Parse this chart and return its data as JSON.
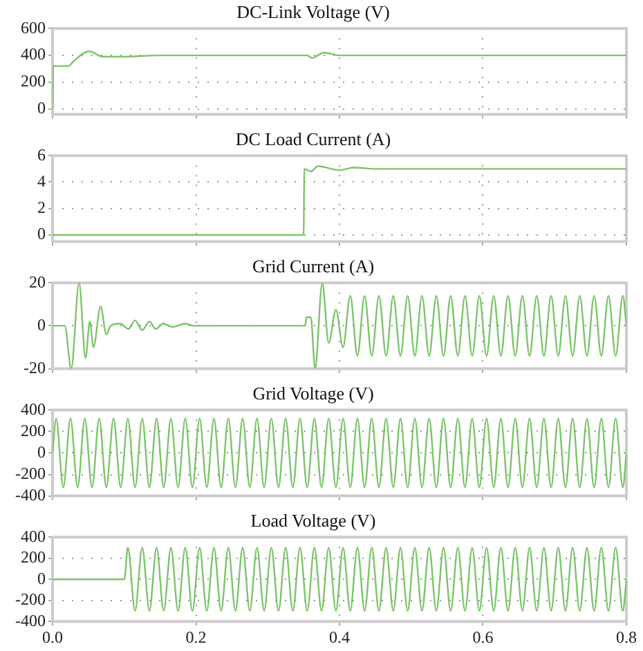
{
  "chart_data": [
    {
      "type": "line",
      "title": "DC-Link Voltage (V)",
      "xlim": [
        0,
        0.8
      ],
      "xticks": [
        0,
        0.2,
        0.4,
        0.6,
        0.8
      ],
      "ylim": [
        -40,
        600
      ],
      "yticks": [
        0,
        200,
        400,
        600
      ],
      "grid": true,
      "tick_labels": "y",
      "series": [
        {
          "color": "#7dc36b",
          "x": [
            0,
            0.001,
            0.022,
            0.03,
            0.051,
            0.07,
            0.1,
            0.15,
            0.2,
            0.3,
            0.355,
            0.362,
            0.378,
            0.4,
            0.45,
            0.5,
            0.6,
            0.7,
            0.8
          ],
          "values": [
            0,
            320,
            320,
            360,
            430,
            390,
            390,
            400,
            400,
            400,
            400,
            380,
            420,
            400,
            400,
            400,
            400,
            400,
            400
          ]
        }
      ]
    },
    {
      "type": "line",
      "title": "DC Load Current (A)",
      "xlim": [
        0,
        0.8
      ],
      "xticks": [
        0,
        0.2,
        0.4,
        0.6,
        0.8
      ],
      "ylim": [
        -0.5,
        6
      ],
      "yticks": [
        0,
        2,
        4,
        6
      ],
      "grid": true,
      "tick_labels": "y",
      "series": [
        {
          "color": "#7dc36b",
          "x": [
            0,
            0.35,
            0.351,
            0.36,
            0.37,
            0.4,
            0.42,
            0.45,
            0.5,
            0.6,
            0.7,
            0.8
          ],
          "values": [
            0,
            0,
            5,
            4.8,
            5.2,
            4.9,
            5.1,
            5,
            5,
            5,
            5,
            5
          ]
        }
      ]
    },
    {
      "type": "line",
      "title": "Grid Current (A)",
      "xlim": [
        0,
        0.8
      ],
      "xticks": [
        0,
        0.2,
        0.4,
        0.6,
        0.8
      ],
      "ylim": [
        -20,
        20
      ],
      "yticks": [
        -20,
        0,
        20
      ],
      "grid": true,
      "tick_labels": "y",
      "series": [
        {
          "color": "#7dc36b",
          "x": [
            0,
            0.017,
            0.026,
            0.037,
            0.046,
            0.052,
            0.057,
            0.067,
            0.075,
            0.081,
            0.094,
            0.106,
            0.115,
            0.125,
            0.135,
            0.144,
            0.154,
            0.167,
            0.186,
            0.196,
            0.25,
            0.3,
            0.352,
            0.354,
            0.36,
            0.366,
            0.376,
            0.385,
            0.395,
            0.405,
            0.415,
            0.425,
            0.435,
            0.445,
            0.455,
            0.465,
            0.475,
            0.485,
            0.495,
            0.505,
            0.515,
            0.525,
            0.535,
            0.545,
            0.555,
            0.565,
            0.575,
            0.585,
            0.595,
            0.605,
            0.615,
            0.625,
            0.635,
            0.645,
            0.655,
            0.665,
            0.675,
            0.685,
            0.695,
            0.705,
            0.715,
            0.725,
            0.735,
            0.745,
            0.755,
            0.765,
            0.775,
            0.785,
            0.795,
            0.8
          ],
          "values": [
            0,
            0,
            -20,
            20,
            -15,
            2,
            -10,
            9,
            -4,
            0,
            1,
            -1.5,
            2.5,
            -2,
            2,
            -1.5,
            1,
            -0.5,
            1,
            0,
            0,
            0,
            0,
            4,
            4,
            -20,
            20,
            -8,
            7.5,
            -10,
            14,
            -14,
            14,
            -14,
            14,
            -14,
            14,
            -14,
            14,
            -14,
            14,
            -14,
            14,
            -14,
            14,
            -14,
            14,
            -14,
            14,
            -14,
            14,
            -14,
            14,
            -14,
            14,
            -14,
            14,
            -14,
            14,
            -14,
            14,
            -14,
            14,
            -14,
            14,
            -14,
            14,
            -14,
            14,
            0
          ]
        }
      ]
    },
    {
      "type": "line",
      "title": "Grid Voltage (V)",
      "xlim": [
        0,
        0.8
      ],
      "xticks": [
        0,
        0.2,
        0.4,
        0.6,
        0.8
      ],
      "ylim": [
        -400,
        400
      ],
      "yticks": [
        -400,
        -200,
        0,
        200,
        400
      ],
      "grid": true,
      "tick_labels": "y",
      "series": [
        {
          "color": "#7dc36b",
          "x": [
            0,
            0.005,
            0.015,
            0.025,
            0.035,
            0.045,
            0.055,
            0.065,
            0.075,
            0.085,
            0.095,
            0.105,
            0.115,
            0.125,
            0.135,
            0.145,
            0.155,
            0.165,
            0.175,
            0.185,
            0.195,
            0.205,
            0.215,
            0.225,
            0.235,
            0.245,
            0.255,
            0.265,
            0.275,
            0.285,
            0.295,
            0.305,
            0.315,
            0.325,
            0.335,
            0.345,
            0.355,
            0.365,
            0.375,
            0.385,
            0.395,
            0.405,
            0.415,
            0.425,
            0.435,
            0.445,
            0.455,
            0.465,
            0.475,
            0.485,
            0.495,
            0.505,
            0.515,
            0.525,
            0.535,
            0.545,
            0.555,
            0.565,
            0.575,
            0.585,
            0.595,
            0.605,
            0.615,
            0.625,
            0.635,
            0.645,
            0.655,
            0.665,
            0.675,
            0.685,
            0.695,
            0.705,
            0.715,
            0.725,
            0.735,
            0.745,
            0.755,
            0.765,
            0.775,
            0.785,
            0.795,
            0.8
          ],
          "values": [
            0,
            320,
            -320,
            320,
            -320,
            320,
            -320,
            320,
            -320,
            320,
            -320,
            320,
            -320,
            320,
            -320,
            320,
            -320,
            320,
            -320,
            320,
            -320,
            320,
            -320,
            320,
            -320,
            320,
            -320,
            320,
            -320,
            320,
            -320,
            320,
            -320,
            320,
            -320,
            320,
            -320,
            320,
            -320,
            320,
            -320,
            320,
            -320,
            320,
            -320,
            320,
            -320,
            320,
            -320,
            320,
            -320,
            320,
            -320,
            320,
            -320,
            320,
            -320,
            320,
            -320,
            320,
            -320,
            320,
            -320,
            320,
            -320,
            320,
            -320,
            320,
            -320,
            320,
            -320,
            320,
            -320,
            320,
            -320,
            320,
            -320,
            320,
            -320,
            320,
            -320,
            0
          ]
        }
      ]
    },
    {
      "type": "line",
      "title": "Load Voltage (V)",
      "xlim": [
        0,
        0.8
      ],
      "xticks": [
        {
          "value": 0,
          "label": "0.0"
        },
        0.2,
        0.4,
        0.6,
        {
          "value": 0.8,
          "label": "0.8"
        }
      ],
      "ylim": [
        -400,
        400
      ],
      "yticks": [
        -400,
        -200,
        0,
        200,
        400
      ],
      "grid": true,
      "series": [
        {
          "color": "#7dc36b",
          "x": [
            0,
            0.1,
            0.105,
            0.115,
            0.125,
            0.135,
            0.145,
            0.155,
            0.165,
            0.175,
            0.185,
            0.195,
            0.205,
            0.215,
            0.225,
            0.235,
            0.245,
            0.255,
            0.265,
            0.275,
            0.285,
            0.295,
            0.305,
            0.315,
            0.325,
            0.335,
            0.345,
            0.355,
            0.365,
            0.375,
            0.385,
            0.395,
            0.405,
            0.415,
            0.425,
            0.435,
            0.445,
            0.455,
            0.465,
            0.475,
            0.485,
            0.495,
            0.505,
            0.515,
            0.525,
            0.535,
            0.545,
            0.555,
            0.565,
            0.575,
            0.585,
            0.595,
            0.605,
            0.615,
            0.625,
            0.635,
            0.645,
            0.655,
            0.665,
            0.675,
            0.685,
            0.695,
            0.705,
            0.715,
            0.725,
            0.735,
            0.745,
            0.755,
            0.765,
            0.775,
            0.785,
            0.795,
            0.8
          ],
          "values": [
            0,
            0,
            300,
            -300,
            300,
            -300,
            300,
            -300,
            300,
            -300,
            300,
            -300,
            300,
            -300,
            300,
            -300,
            300,
            -300,
            300,
            -300,
            300,
            -300,
            300,
            -300,
            300,
            -300,
            300,
            -300,
            300,
            -300,
            300,
            -300,
            300,
            -300,
            300,
            -300,
            300,
            -300,
            300,
            -300,
            300,
            -300,
            300,
            -300,
            300,
            -300,
            300,
            -300,
            300,
            -300,
            300,
            -300,
            300,
            -300,
            300,
            -300,
            300,
            -300,
            300,
            -300,
            300,
            -300,
            300,
            -300,
            300,
            -300,
            300,
            -300,
            300,
            -300,
            300,
            -300,
            0
          ]
        }
      ]
    }
  ]
}
